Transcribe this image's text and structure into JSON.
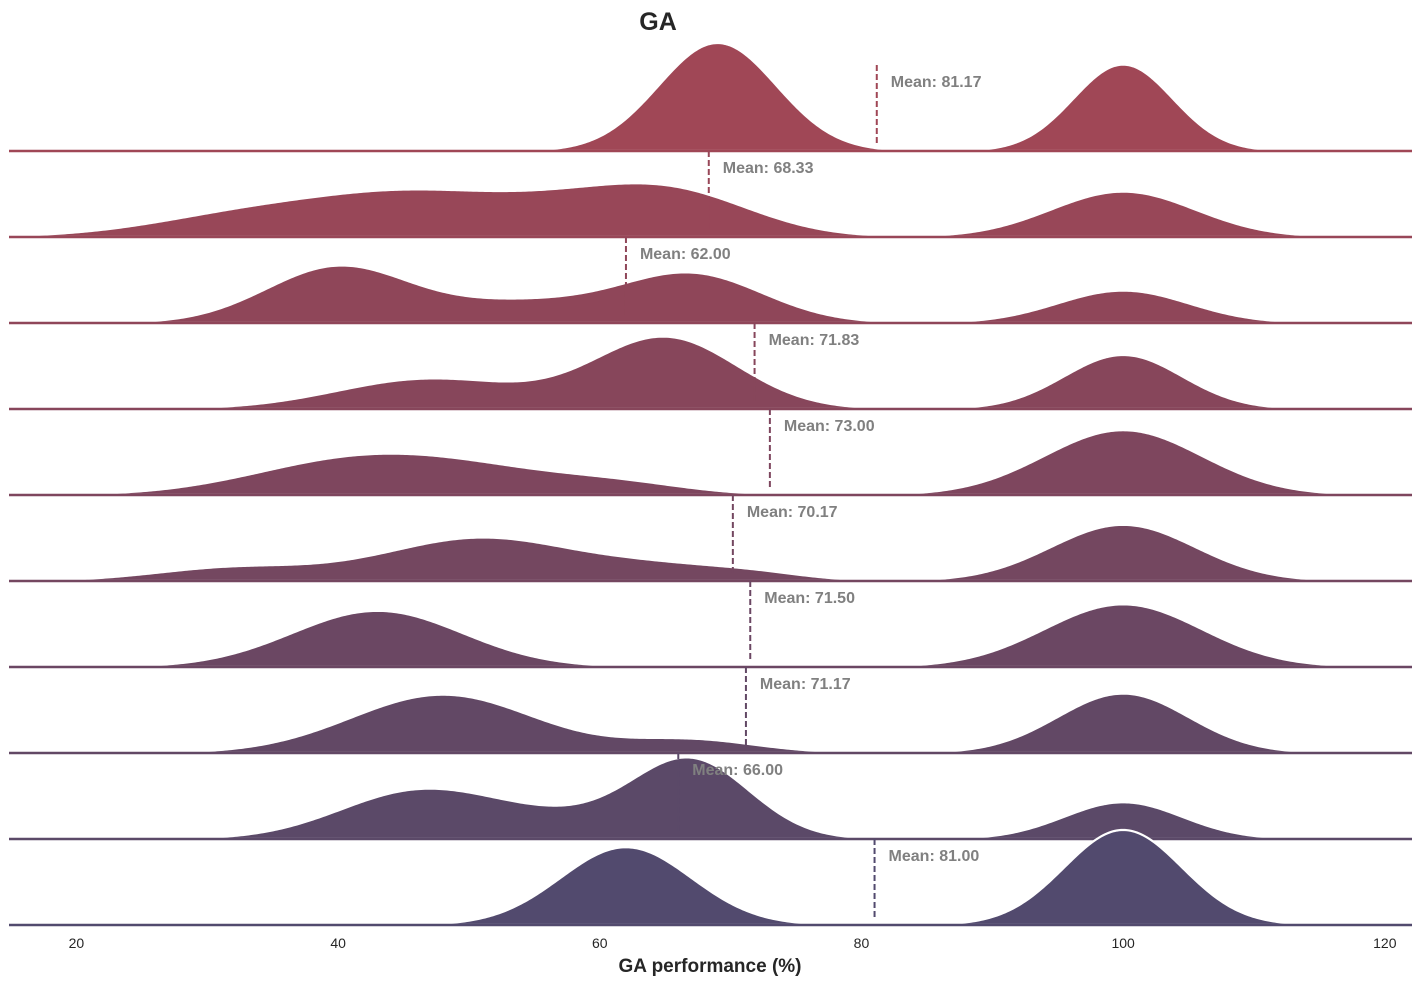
{
  "chart_data": {
    "type": "area",
    "subtype": "ridgeline",
    "title": "GA",
    "xlabel": "GA performance (%)",
    "ylabel": "",
    "xlim": [
      15,
      122
    ],
    "xticks": [
      20,
      40,
      60,
      80,
      100,
      120
    ],
    "grid": false,
    "mean_label_prefix": "Mean: ",
    "series": [
      {
        "mean": 81.17,
        "color": "#a04756",
        "components": [
          [
            69,
            4.5,
            1.0
          ],
          [
            100,
            3.8,
            0.8
          ]
        ]
      },
      {
        "mean": 68.33,
        "color": "#984758",
        "components": [
          [
            35,
            8.0,
            0.25
          ],
          [
            46,
            6.5,
            0.28
          ],
          [
            57,
            6.5,
            0.26
          ],
          [
            66,
            6.0,
            0.36
          ],
          [
            100,
            5.5,
            0.42
          ]
        ]
      },
      {
        "mean": 62.0,
        "color": "#8f4659",
        "components": [
          [
            40,
            5.5,
            0.52
          ],
          [
            54,
            6.0,
            0.18
          ],
          [
            67,
            5.5,
            0.45
          ],
          [
            100,
            5.0,
            0.3
          ]
        ]
      },
      {
        "mean": 71.83,
        "color": "#87465b",
        "components": [
          [
            47,
            7.0,
            0.28
          ],
          [
            65,
            5.5,
            0.66
          ],
          [
            100,
            4.5,
            0.5
          ]
        ]
      },
      {
        "mean": 73.0,
        "color": "#7e465e",
        "components": [
          [
            40,
            7.5,
            0.25
          ],
          [
            50,
            8.0,
            0.22
          ],
          [
            62,
            5.0,
            0.07
          ],
          [
            100,
            6.0,
            0.6
          ]
        ]
      },
      {
        "mean": 70.17,
        "color": "#744760",
        "components": [
          [
            32,
            6.0,
            0.12
          ],
          [
            51,
            7.5,
            0.4
          ],
          [
            65,
            5.0,
            0.1
          ],
          [
            72,
            4.0,
            0.06
          ],
          [
            100,
            5.5,
            0.52
          ]
        ]
      },
      {
        "mean": 71.5,
        "color": "#6b4763",
        "components": [
          [
            43,
            6.5,
            0.52
          ],
          [
            100,
            6.0,
            0.58
          ]
        ]
      },
      {
        "mean": 71.17,
        "color": "#624865",
        "components": [
          [
            48,
            7.0,
            0.54
          ],
          [
            67,
            5.0,
            0.12
          ],
          [
            100,
            5.0,
            0.55
          ]
        ]
      },
      {
        "mean": 66.0,
        "color": "#5b4968",
        "components": [
          [
            46,
            6.0,
            0.43
          ],
          [
            57,
            6.0,
            0.17
          ],
          [
            67,
            4.5,
            0.71
          ],
          [
            100,
            4.5,
            0.34
          ]
        ]
      },
      {
        "mean": 81.0,
        "color": "#524a6e",
        "components": [
          [
            62,
            5.0,
            0.72
          ],
          [
            100,
            4.5,
            0.88
          ]
        ]
      }
    ]
  }
}
